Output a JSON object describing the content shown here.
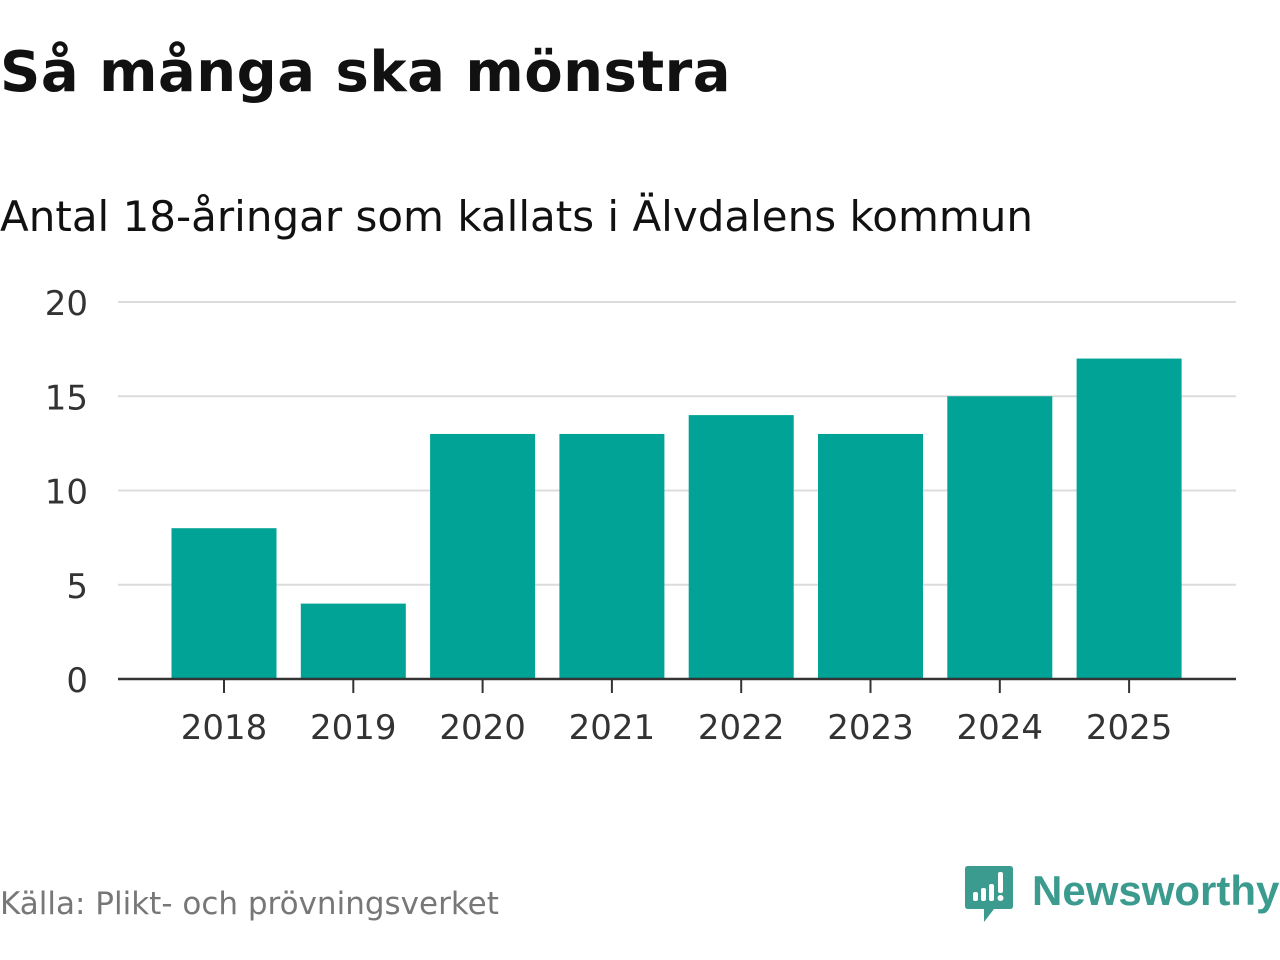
{
  "chart_data": {
    "type": "bar",
    "title": "Så många ska mönstra",
    "subtitle": "Antal 18-åringar som kallats i Älvdalens kommun",
    "categories": [
      "2018",
      "2019",
      "2020",
      "2021",
      "2022",
      "2023",
      "2024",
      "2025"
    ],
    "values": [
      8,
      4,
      13,
      13,
      14,
      13,
      15,
      17
    ],
    "ylim": [
      0,
      20
    ],
    "yticks": [
      "0",
      "5",
      "10",
      "15",
      "20"
    ],
    "xlabel": "",
    "ylabel": "",
    "grid": true,
    "bar_color": "#00a396"
  },
  "footer": {
    "source": "Källa: Plikt- och prövningsverket",
    "brand": "Newsworthy",
    "brand_color": "#3a9b8e"
  }
}
